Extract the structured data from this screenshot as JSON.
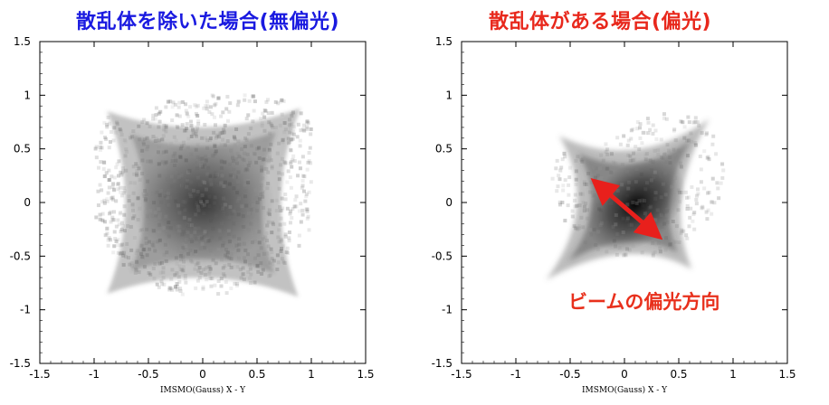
{
  "colors": {
    "title_left": "#1a1ae0",
    "title_right": "#e8281c",
    "annotation": "#e8301c",
    "arrow": "#e8201c"
  },
  "chart_data": [
    {
      "type": "scatter",
      "panel": "left",
      "title": "散乱体を除いた場合(無偏光)",
      "xlabel": "IMSMO(Gauss)  X - Y",
      "ylabel": "",
      "xlim": [
        -1.5,
        1.5
      ],
      "ylim": [
        -1.5,
        1.5
      ],
      "xticks": [
        -1.5,
        -1,
        -0.5,
        0,
        0.5,
        1,
        1.5
      ],
      "yticks": [
        -1.5,
        -1,
        -0.5,
        0,
        0.5,
        1,
        1.5
      ],
      "xtick_labels": [
        "-1.5",
        "-1",
        "-0.5",
        "0",
        "0.5",
        "1",
        "1.5"
      ],
      "ytick_labels": [
        "-1.5",
        "-1",
        "-0.5",
        "0",
        "0.5",
        "1",
        "1.5"
      ],
      "grid": false,
      "distribution": {
        "shape": "four-pointed star (concave square)",
        "center": [
          0,
          0
        ],
        "corners": [
          [
            -0.88,
            0.85
          ],
          [
            0.9,
            0.88
          ],
          [
            0.88,
            -0.88
          ],
          [
            -0.88,
            -0.85
          ]
        ],
        "polarized": false
      }
    },
    {
      "type": "scatter",
      "panel": "right",
      "title": "散乱体がある場合(偏光)",
      "xlabel": "IMSMO(Gauss)  X - Y",
      "ylabel": "",
      "xlim": [
        -1.5,
        1.5
      ],
      "ylim": [
        -1.5,
        1.5
      ],
      "xticks": [
        -1.5,
        -1,
        -0.5,
        0,
        0.5,
        1,
        1.5
      ],
      "yticks": [
        -1.5,
        -1,
        -0.5,
        0,
        0.5,
        1,
        1.5
      ],
      "xtick_labels": [
        "-1.5",
        "-1",
        "-0.5",
        "0",
        "0.5",
        "1",
        "1.5"
      ],
      "ytick_labels": [
        "-1.5",
        "-1",
        "-0.5",
        "0",
        "0.5",
        "1",
        "1.5"
      ],
      "grid": false,
      "distribution": {
        "shape": "four-pointed star elongated along the diagonal",
        "center": [
          0.1,
          -0.02
        ],
        "corners": [
          [
            -0.6,
            0.62
          ],
          [
            0.78,
            0.78
          ],
          [
            0.62,
            -0.62
          ],
          [
            -0.72,
            -0.72
          ]
        ],
        "polarized": true
      },
      "annotation": {
        "text": "ビームの偏光方向",
        "arrow_from": [
          -0.28,
          0.2
        ],
        "arrow_to": [
          0.32,
          -0.32
        ]
      }
    }
  ]
}
